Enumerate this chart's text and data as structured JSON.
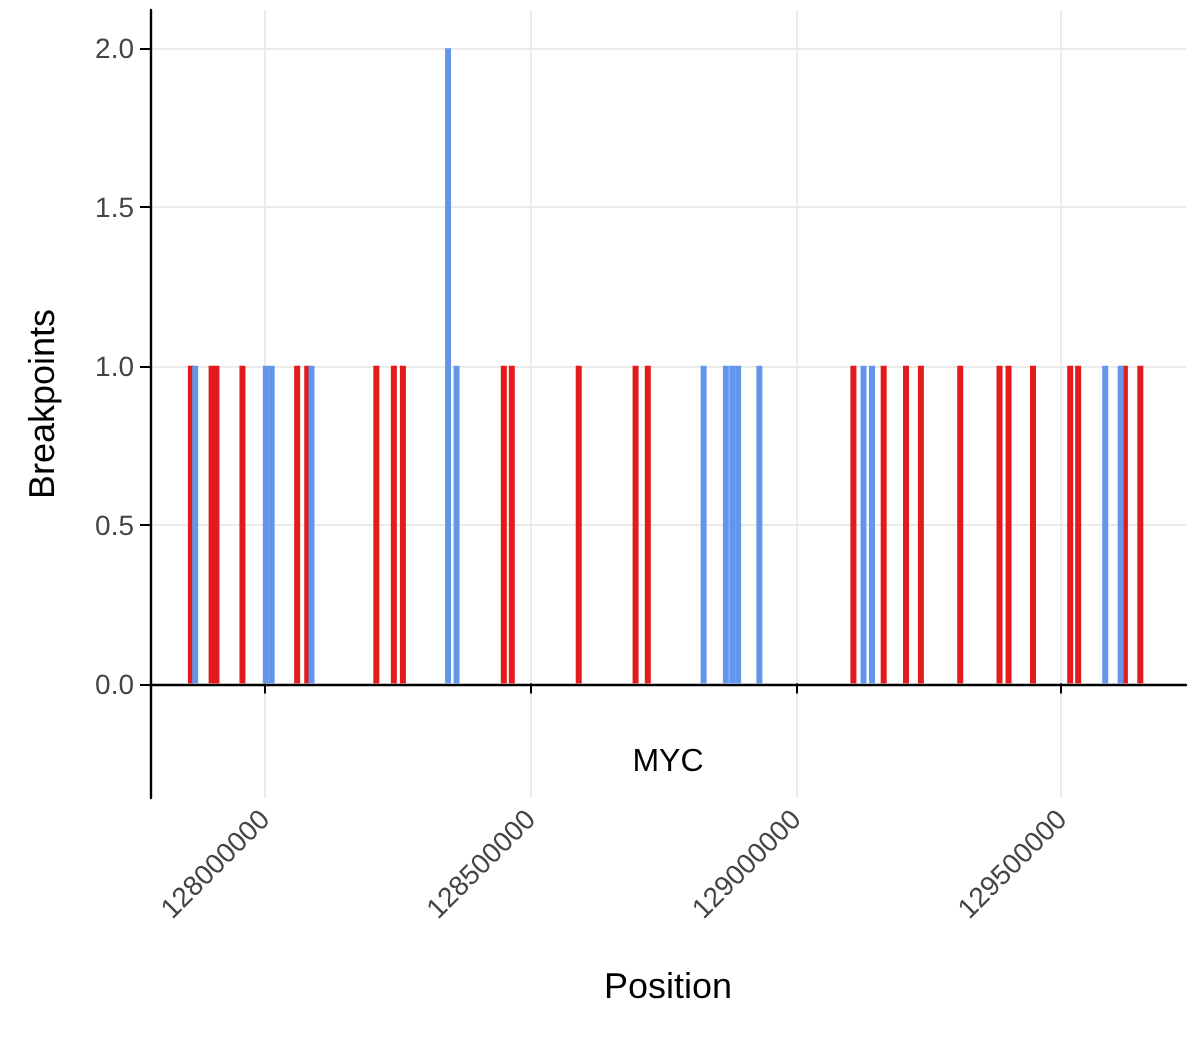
{
  "chart_data": {
    "type": "bar",
    "xlabel": "Position",
    "ylabel": "Breakpoints",
    "xlim": [
      127785000,
      129735000
    ],
    "xticks": [
      128000000,
      128500000,
      129000000,
      129500000
    ],
    "ylim": [
      -0.36,
      2.12
    ],
    "yticks": [
      {
        "value": 0,
        "label": "0.0"
      },
      0.5,
      {
        "value": 1,
        "label": "1.0"
      },
      1.5,
      {
        "value": 2,
        "label": "2.0"
      }
    ],
    "grid": true,
    "series": [
      {
        "color": "#e41a1c",
        "x": [
          127862000,
          127901000,
          127910000,
          127959000,
          128062000,
          128081000,
          128211000,
          128244000,
          128261000,
          128451000,
          128466000,
          128592000,
          128699000,
          128722000,
          129109000,
          129166000,
          129208000,
          129236000,
          129310000,
          129384000,
          129401000,
          129447000,
          129517000,
          129532000,
          129620000,
          129649000
        ],
        "values": [
          1,
          1,
          1,
          1,
          1,
          1,
          1,
          1,
          1,
          1,
          1,
          1,
          1,
          1,
          1,
          1,
          1,
          1,
          1,
          1,
          1,
          1,
          1,
          1,
          1,
          1
        ]
      },
      {
        "color": "#6495ed",
        "x": [
          127870000,
          128003000,
          128014000,
          128089000,
          128346000,
          128362000,
          128827000,
          128869000,
          128881000,
          128892000,
          128932000,
          129128000,
          129144000,
          129583000,
          129612000
        ],
        "values": [
          1,
          1,
          1,
          1,
          2,
          1,
          1,
          1,
          1,
          1,
          1,
          1,
          1,
          1,
          1
        ]
      }
    ],
    "annotations": [
      "MYC"
    ]
  }
}
